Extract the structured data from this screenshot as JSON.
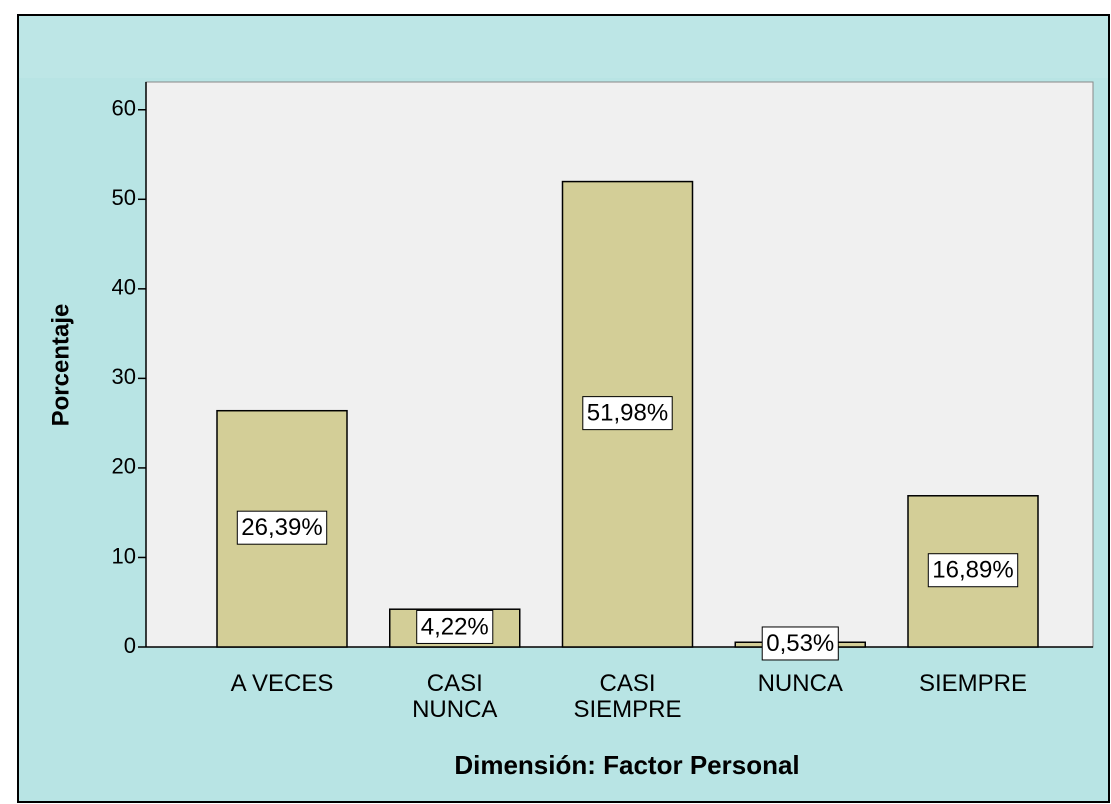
{
  "chart_data": {
    "type": "bar",
    "categories": [
      "A VECES",
      "CASI\nNUNCA",
      "CASI\nSIEMPRE",
      "NUNCA",
      "SIEMPRE"
    ],
    "values": [
      26.39,
      4.22,
      51.98,
      0.53,
      16.89
    ],
    "value_labels": [
      "26,39%",
      "4,22%",
      "51,98%",
      "0,53%",
      "16,89%"
    ],
    "color": "#d3ce97",
    "ylim": [
      0,
      63.1
    ],
    "yticks": [
      0,
      10,
      20,
      30,
      40,
      50,
      60
    ],
    "y_label": "Porcentaje",
    "x_label": "Dimensión: Factor Personal"
  }
}
